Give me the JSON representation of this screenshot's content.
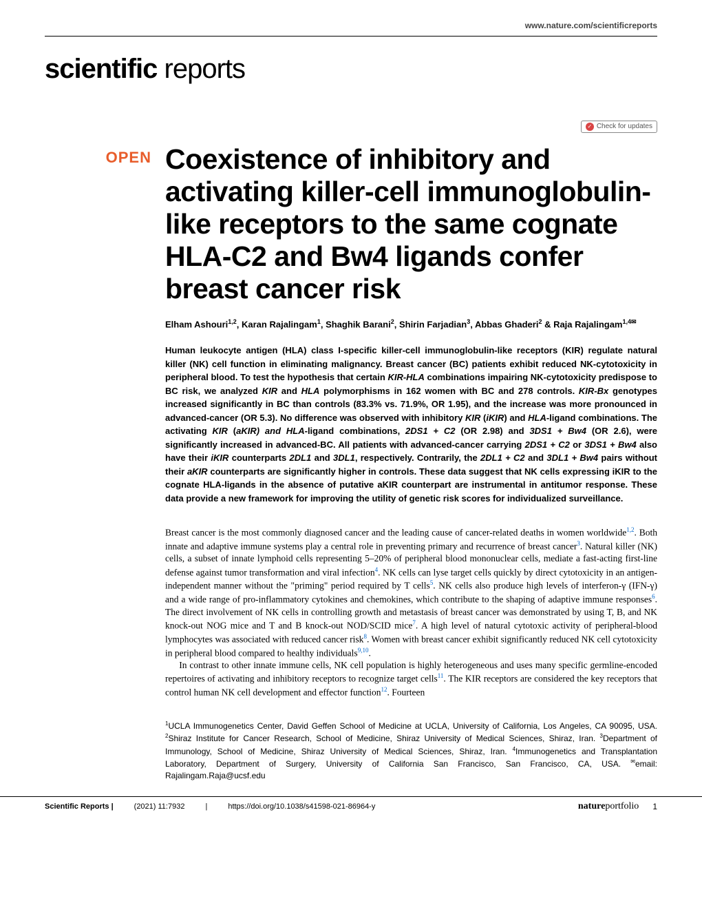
{
  "header": {
    "url": "www.nature.com/scientificreports"
  },
  "journal": {
    "name_bold": "scientific",
    "name_light": " reports"
  },
  "check_updates": {
    "label": "Check for updates"
  },
  "open_access": {
    "label": "OPEN"
  },
  "article": {
    "title": "Coexistence of inhibitory and activating killer-cell immunoglobulin-like receptors to the same cognate HLA-C2 and Bw4 ligands confer breast cancer risk"
  },
  "authors": {
    "text_html": "Elham Ashouri<sup>1,2</sup>, Karan Rajalingam<sup>1</sup>, Shaghik Barani<sup>2</sup>, Shirin Farjadian<sup>3</sup>, Abbas Ghaderi<sup>2</sup> & Raja Rajalingam<sup>1,4✉</sup>"
  },
  "abstract": {
    "text_html": "Human leukocyte antigen (HLA) class I-specific killer-cell immunoglobulin-like receptors (KIR) regulate natural killer (NK) cell function in eliminating malignancy. Breast cancer (BC) patients exhibit reduced NK-cytotoxicity in peripheral blood. To test the hypothesis that certain <em>KIR-HLA</em> combinations impairing NK-cytotoxicity predispose to BC risk, we analyzed <em>KIR</em> and <em>HLA</em> polymorphisms in 162 women with BC and 278 controls. <em>KIR-Bx</em> genotypes increased significantly in BC than controls (83.3% vs. 71.9%, OR 1.95), and the increase was more pronounced in advanced-cancer (OR 5.3). No difference was observed with inhibitory <em>KIR</em> (<em>iKIR</em>) and <em>HLA</em>-ligand combinations. The activating <em>KIR</em> (<em>aKIR) and HLA</em>-ligand combinations, <em>2DS1 + C2</em> (OR 2.98) and <em>3DS1 + Bw4</em> (OR 2.6), were significantly increased in advanced-BC. All patients with advanced-cancer carrying <em>2DS1 + C2</em> or <em>3DS1 + Bw4</em> also have their <em>iKIR</em> counterparts <em>2DL1</em> and <em>3DL1</em>, respectively. Contrarily, the <em>2DL1 + C2</em> and <em>3DL1 + Bw4</em> pairs without their <em>aKIR</em> counterparts are significantly higher in controls. These data suggest that NK cells expressing iKIR to the cognate HLA-ligands in the absence of putative aKIR counterpart are instrumental in antitumor response. These data provide a new framework for improving the utility of genetic risk scores for individualized surveillance."
  },
  "body": {
    "para1_html": "Breast cancer is the most commonly diagnosed cancer and the leading cause of cancer-related deaths in women worldwide<sup class=\"ref-sup\">1,2</sup>. Both innate and adaptive immune systems play a central role in preventing primary and recurrence of breast cancer<sup class=\"ref-sup\">3</sup>. Natural killer (NK) cells, a subset of innate lymphoid cells representing 5–20% of peripheral blood mononuclear cells, mediate a fast-acting first-line defense against tumor transformation and viral infection<sup class=\"ref-sup\">4</sup>. NK cells can lyse target cells quickly by direct cytotoxicity in an antigen-independent manner without the \"priming\" period required by T cells<sup class=\"ref-sup\">5</sup>. NK cells also produce high levels of interferon-γ (IFN-γ) and a wide range of pro-inflammatory cytokines and chemokines, which contribute to the shaping of adaptive immune responses<sup class=\"ref-sup\">6</sup>. The direct involvement of NK cells in controlling growth and metastasis of breast cancer was demonstrated by using T, B, and NK knock-out NOG mice and T and B knock-out NOD/SCID mice<sup class=\"ref-sup\">7</sup>. A high level of natural cytotoxic activity of peripheral-blood lymphocytes was associated with reduced cancer risk<sup class=\"ref-sup\">8</sup>. Women with breast cancer exhibit significantly reduced NK cell cytotoxicity in peripheral blood compared to healthy individuals<sup class=\"ref-sup\">9,10</sup>.",
    "para2_html": "In contrast to other innate immune cells, NK cell population is highly heterogeneous and uses many specific germline-encoded repertoires of activating and inhibitory receptors to recognize target cells<sup class=\"ref-sup\">11</sup>. The KIR receptors are considered the key receptors that control human NK cell development and effector function<sup class=\"ref-sup\">12</sup>. Fourteen"
  },
  "affiliations": {
    "text_html": "<sup>1</sup>UCLA Immunogenetics Center, David Geffen School of Medicine at UCLA, University of California, Los Angeles, CA 90095, USA. <sup>2</sup>Shiraz Institute for Cancer Research, School of Medicine, Shiraz University of Medical Sciences, Shiraz, Iran. <sup>3</sup>Department of Immunology, School of Medicine, Shiraz University of Medical Sciences, Shiraz, Iran. <sup>4</sup>Immunogenetics and Transplantation Laboratory, Department of Surgery, University of California San Francisco, San Francisco, CA, USA. <sup>✉</sup>email: Rajalingam.Raja@ucsf.edu"
  },
  "footer": {
    "journal": "Scientific Reports |",
    "citation": "(2021) 11:7932",
    "divider": "|",
    "doi": "https://doi.org/10.1038/s41598-021-86964-y",
    "publisher_bold": "nature",
    "publisher_light": "portfolio",
    "page_number": "1"
  },
  "colors": {
    "open_access": "#e85d2b",
    "ref_link": "#0066cc",
    "check_icon_bg": "#d94545"
  }
}
